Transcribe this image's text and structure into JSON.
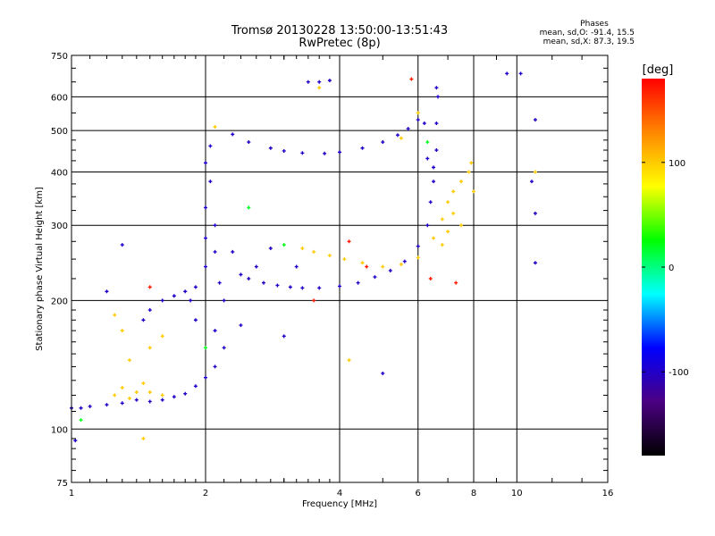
{
  "title": {
    "line1": "Tromsø 20130228 13:50:00-13:51:43",
    "line2": "RwPretec (8p)"
  },
  "phases": {
    "header": "Phases",
    "line1": "mean, sd,O: -91.4, 15.5",
    "line2": "mean, sd,X:  87.3, 19.5"
  },
  "chart_data": {
    "type": "scatter",
    "xlabel": "Frequency [MHz]",
    "ylabel": "Stationary phase Virtual Height [km]",
    "x_scale": "log",
    "y_scale": "log",
    "xlim": [
      1,
      16
    ],
    "ylim": [
      75,
      750
    ],
    "x_ticks": [
      1,
      2,
      4,
      6,
      8,
      10,
      16
    ],
    "y_ticks": [
      75,
      100,
      200,
      300,
      400,
      500,
      600,
      750
    ],
    "grid": true,
    "colorbar": {
      "label": "[deg]",
      "ticks": [
        100,
        0,
        -100
      ],
      "range": [
        -180,
        180
      ],
      "colors": [
        "#000000",
        "#4b0082",
        "#0000ff",
        "#00ffff",
        "#00ff00",
        "#ffff00",
        "#ff8800",
        "#ff0000"
      ]
    },
    "series": [
      {
        "points": [
          [
            1.0,
            112
          ],
          [
            1.05,
            112
          ],
          [
            1.1,
            113
          ],
          [
            1.2,
            114
          ],
          [
            1.3,
            115
          ],
          [
            1.4,
            117
          ],
          [
            1.5,
            116
          ],
          [
            1.6,
            117
          ],
          [
            1.7,
            119
          ],
          [
            1.8,
            121
          ],
          [
            1.9,
            126
          ],
          [
            2.0,
            132
          ],
          [
            1.02,
            94
          ],
          [
            1.2,
            210
          ],
          [
            1.3,
            270
          ],
          [
            1.45,
            180
          ],
          [
            1.5,
            190
          ],
          [
            1.6,
            200
          ],
          [
            1.7,
            205
          ],
          [
            1.8,
            210
          ],
          [
            1.9,
            215
          ],
          [
            2.0,
            240
          ],
          [
            2.0,
            280
          ],
          [
            2.0,
            330
          ],
          [
            2.05,
            380
          ],
          [
            2.0,
            420
          ],
          [
            2.05,
            460
          ],
          [
            2.1,
            300
          ],
          [
            2.1,
            260
          ],
          [
            2.15,
            220
          ],
          [
            2.2,
            200
          ],
          [
            2.3,
            260
          ],
          [
            2.4,
            230
          ],
          [
            2.5,
            225
          ],
          [
            2.7,
            220
          ],
          [
            2.9,
            217
          ],
          [
            3.1,
            215
          ],
          [
            3.3,
            214
          ],
          [
            3.6,
            214
          ],
          [
            4.0,
            216
          ],
          [
            4.4,
            220
          ],
          [
            4.8,
            227
          ],
          [
            5.2,
            235
          ],
          [
            5.6,
            247
          ],
          [
            6.0,
            268
          ],
          [
            6.3,
            300
          ],
          [
            6.4,
            340
          ],
          [
            6.5,
            380
          ],
          [
            6.6,
            450
          ],
          [
            6.6,
            520
          ],
          [
            6.65,
            600
          ],
          [
            6.6,
            630
          ],
          [
            6.2,
            520
          ],
          [
            6.3,
            430
          ],
          [
            6.5,
            410
          ],
          [
            2.3,
            490
          ],
          [
            2.5,
            470
          ],
          [
            2.8,
            455
          ],
          [
            3.0,
            448
          ],
          [
            3.3,
            443
          ],
          [
            3.7,
            442
          ],
          [
            4.0,
            445
          ],
          [
            4.5,
            455
          ],
          [
            5.0,
            470
          ],
          [
            5.4,
            488
          ],
          [
            5.7,
            505
          ],
          [
            6.0,
            530
          ],
          [
            3.4,
            650
          ],
          [
            3.6,
            650
          ],
          [
            3.8,
            655
          ],
          [
            2.1,
            140
          ],
          [
            2.1,
            170
          ],
          [
            1.9,
            180
          ],
          [
            1.85,
            200
          ],
          [
            2.2,
            155
          ],
          [
            2.4,
            175
          ],
          [
            2.6,
            240
          ],
          [
            2.8,
            265
          ],
          [
            3.2,
            240
          ],
          [
            10.2,
            680
          ],
          [
            9.5,
            680
          ],
          [
            11.0,
            530
          ],
          [
            10.8,
            380
          ],
          [
            11.0,
            320
          ],
          [
            11.0,
            245
          ],
          [
            5.0,
            135
          ],
          [
            3.0,
            165
          ]
        ],
        "phase": -100
      },
      {
        "points": [
          [
            1.25,
            120
          ],
          [
            1.3,
            125
          ],
          [
            1.35,
            118
          ],
          [
            1.4,
            122
          ],
          [
            1.45,
            128
          ],
          [
            1.5,
            122
          ],
          [
            1.35,
            145
          ],
          [
            1.5,
            155
          ],
          [
            1.6,
            165
          ],
          [
            1.3,
            170
          ],
          [
            1.25,
            185
          ],
          [
            3.3,
            265
          ],
          [
            3.5,
            260
          ],
          [
            3.8,
            255
          ],
          [
            4.1,
            250
          ],
          [
            4.5,
            245
          ],
          [
            5.0,
            240
          ],
          [
            5.5,
            243
          ],
          [
            6.0,
            252
          ],
          [
            6.5,
            280
          ],
          [
            6.8,
            310
          ],
          [
            7.0,
            340
          ],
          [
            7.2,
            360
          ],
          [
            7.5,
            380
          ],
          [
            7.8,
            400
          ],
          [
            7.9,
            420
          ],
          [
            7.5,
            300
          ],
          [
            7.0,
            290
          ],
          [
            6.8,
            270
          ],
          [
            7.2,
            320
          ],
          [
            8.0,
            360
          ],
          [
            6.0,
            550
          ],
          [
            5.5,
            480
          ],
          [
            2.1,
            510
          ],
          [
            3.6,
            630
          ],
          [
            11.0,
            400
          ],
          [
            1.6,
            120
          ],
          [
            1.45,
            95
          ],
          [
            4.2,
            145
          ]
        ],
        "phase": 100
      },
      {
        "points": [
          [
            5.8,
            660
          ],
          [
            4.2,
            275
          ],
          [
            4.6,
            240
          ],
          [
            7.3,
            220
          ],
          [
            3.5,
            200
          ],
          [
            1.5,
            215
          ],
          [
            6.4,
            225
          ]
        ],
        "phase": 170
      },
      {
        "points": [
          [
            1.05,
            105
          ],
          [
            2.0,
            155
          ],
          [
            2.5,
            330
          ],
          [
            6.3,
            470
          ],
          [
            3.0,
            270
          ]
        ],
        "phase": 20
      }
    ]
  }
}
